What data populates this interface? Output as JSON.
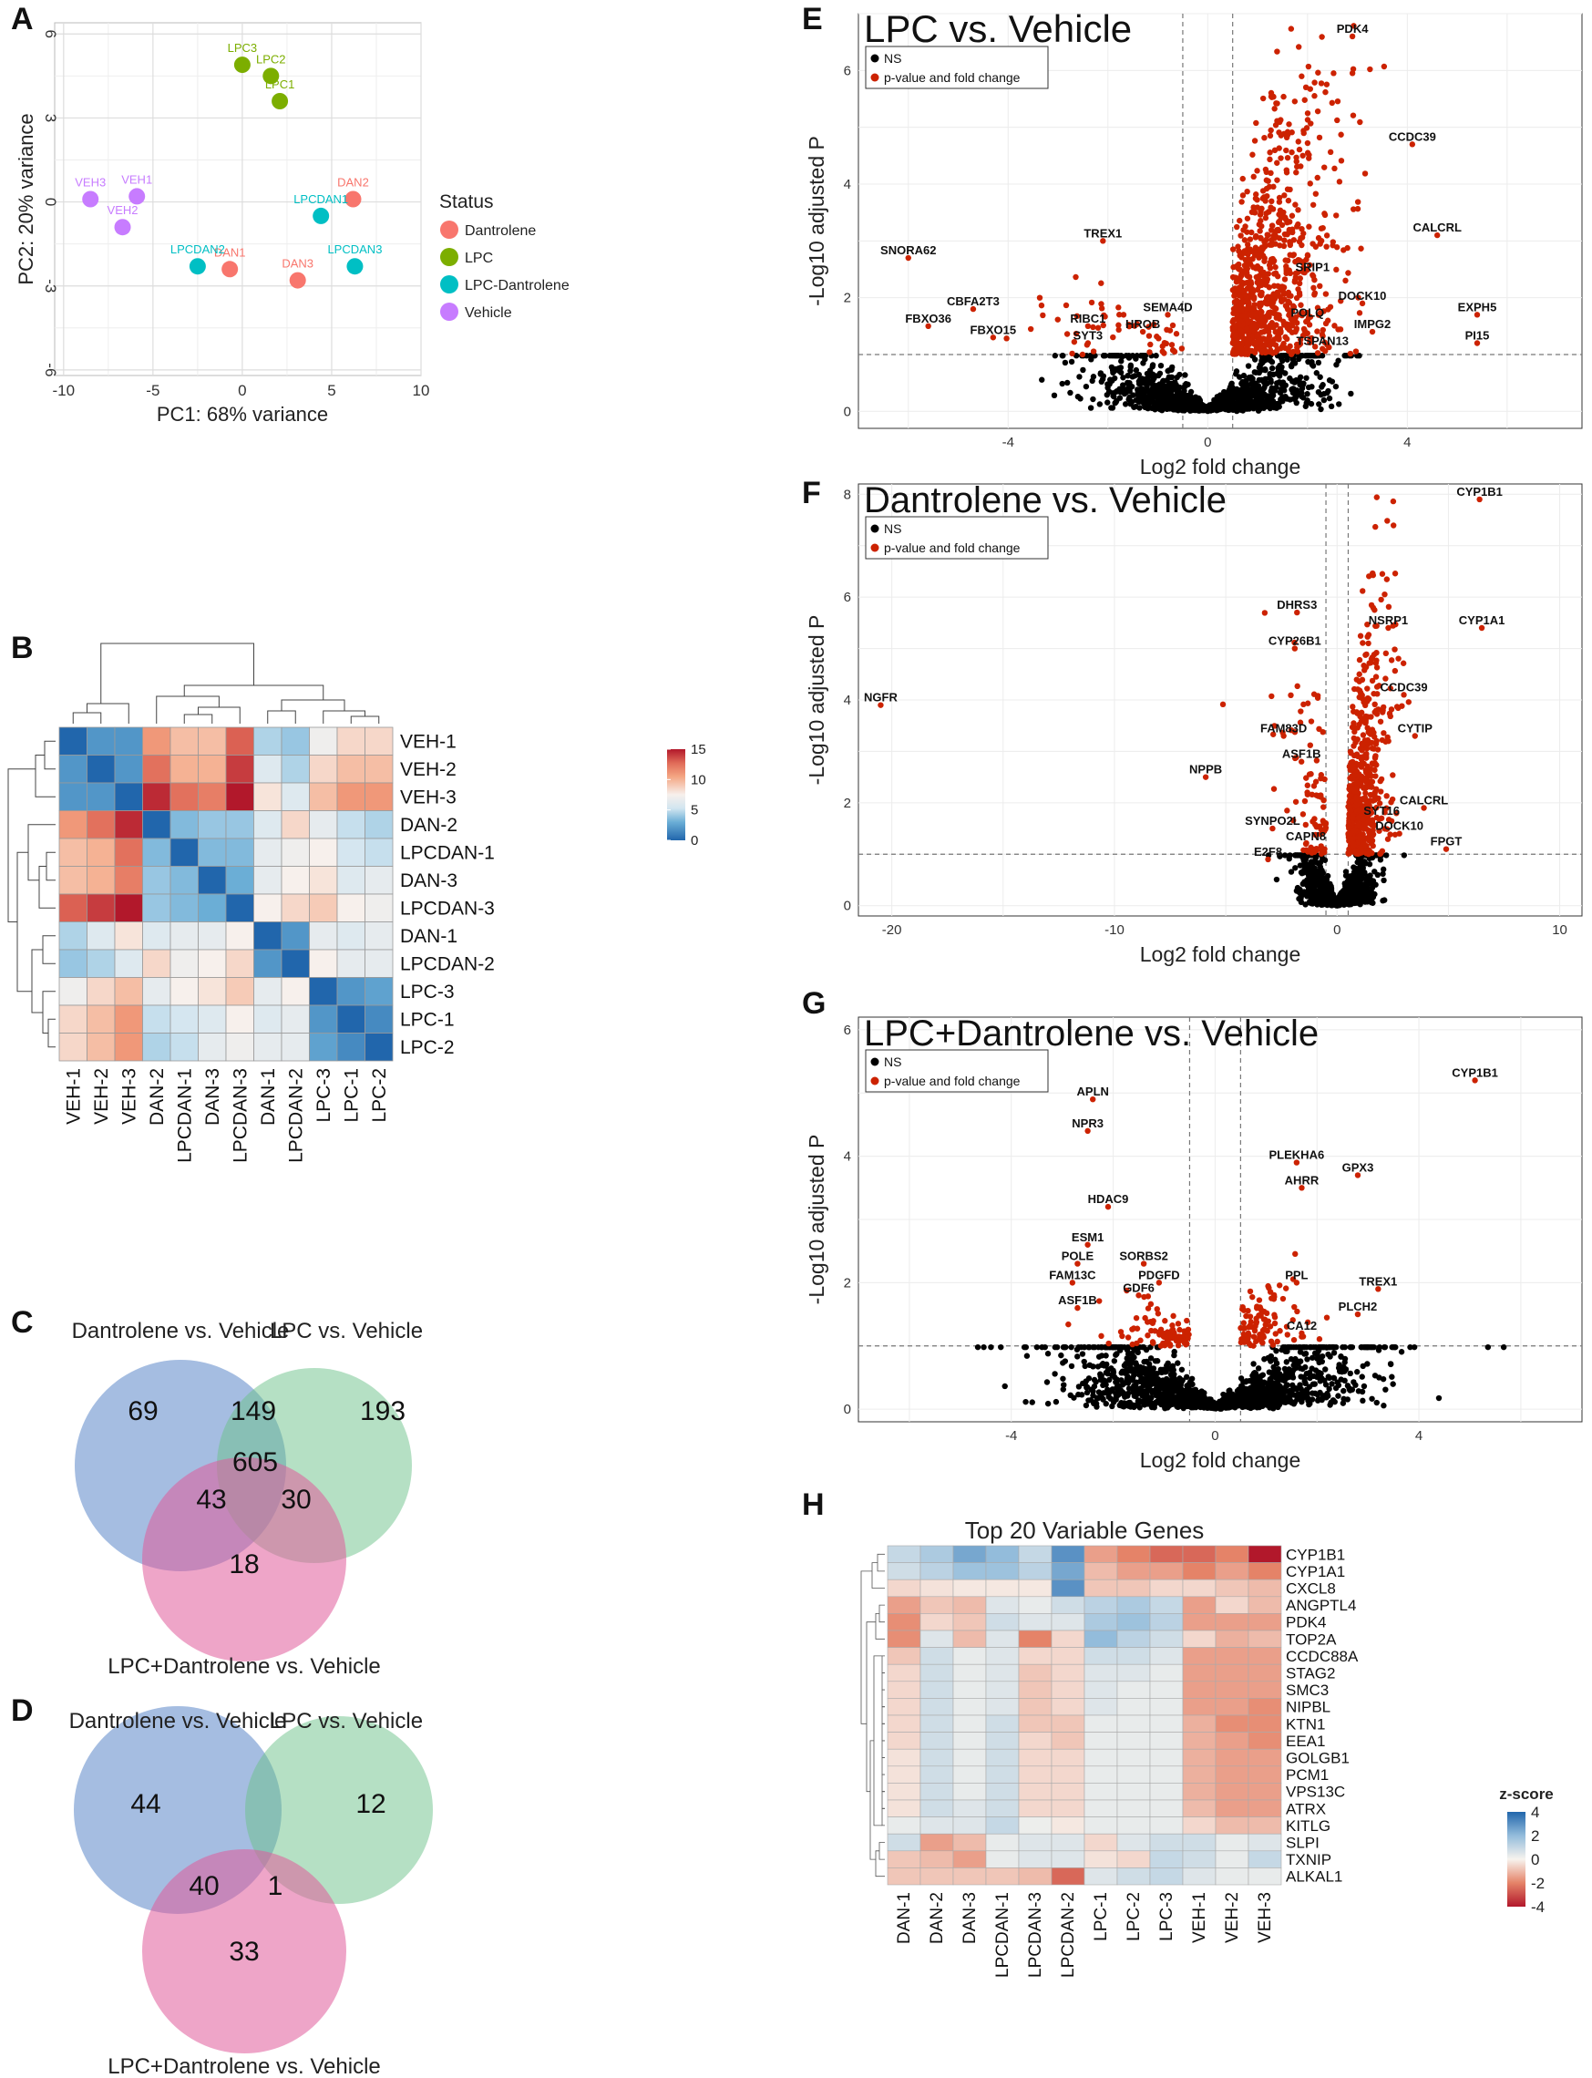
{
  "panel_labels": [
    "A",
    "B",
    "C",
    "D",
    "E",
    "F",
    "G",
    "H"
  ],
  "colors": {
    "dantrolene": "#F8766D",
    "lpc": "#7CAE00",
    "lpc_dantrolene": "#00BFC4",
    "vehicle": "#C77CFF",
    "sig_red": "#CC2200",
    "ns_black": "#000000"
  },
  "chart_data": [
    {
      "id": "A",
      "type": "scatter",
      "title": "",
      "xlabel": "PC1: 68% variance",
      "ylabel": "PC2: 20% variance",
      "xlim": [
        -10.5,
        10
      ],
      "ylim": [
        -6.2,
        6.4
      ],
      "xticks": [
        -10,
        -5,
        0,
        5,
        10
      ],
      "yticks": [
        -6,
        -3,
        0,
        3,
        6
      ],
      "legend_title": "Status",
      "legend": [
        {
          "label": "Dantrolene",
          "color": "#F8766D"
        },
        {
          "label": "LPC",
          "color": "#7CAE00"
        },
        {
          "label": "LPC-Dantrolene",
          "color": "#00BFC4"
        },
        {
          "label": "Vehicle",
          "color": "#C77CFF"
        }
      ],
      "points": [
        {
          "label": "LPC3",
          "x": 0.0,
          "y": 4.9,
          "group": "LPC"
        },
        {
          "label": "LPC2",
          "x": 1.6,
          "y": 4.5,
          "group": "LPC"
        },
        {
          "label": "LPC1",
          "x": 2.1,
          "y": 3.6,
          "group": "LPC"
        },
        {
          "label": "VEH3",
          "x": -8.5,
          "y": 0.1,
          "group": "Vehicle"
        },
        {
          "label": "VEH1",
          "x": -5.9,
          "y": 0.2,
          "group": "Vehicle"
        },
        {
          "label": "VEH2",
          "x": -6.7,
          "y": -0.9,
          "group": "Vehicle"
        },
        {
          "label": "DAN2",
          "x": 6.2,
          "y": 0.1,
          "group": "Dantrolene"
        },
        {
          "label": "DAN1",
          "x": -0.7,
          "y": -2.4,
          "group": "Dantrolene"
        },
        {
          "label": "DAN3",
          "x": 3.1,
          "y": -2.8,
          "group": "Dantrolene"
        },
        {
          "label": "LPCDAN1",
          "x": 4.4,
          "y": -0.5,
          "group": "LPC-Dantrolene"
        },
        {
          "label": "LPCDAN2",
          "x": -2.5,
          "y": -2.3,
          "group": "LPC-Dantrolene"
        },
        {
          "label": "LPCDAN3",
          "x": 6.3,
          "y": -2.3,
          "group": "LPC-Dantrolene"
        }
      ]
    },
    {
      "id": "B",
      "type": "heatmap",
      "title": "",
      "row_labels": [
        "VEH-1",
        "VEH-2",
        "VEH-3",
        "DAN-2",
        "LPCDAN-1",
        "DAN-3",
        "LPCDAN-3",
        "DAN-1",
        "LPCDAN-2",
        "LPC-3",
        "LPC-1",
        "LPC-2"
      ],
      "col_labels": [
        "VEH-1",
        "VEH-2",
        "VEH-3",
        "DAN-2",
        "LPCDAN-1",
        "DAN-3",
        "LPCDAN-3",
        "DAN-1",
        "LPCDAN-2",
        "LPC-3",
        "LPC-1",
        "LPC-2"
      ],
      "color_scale": {
        "min": 0,
        "max": 15,
        "ticks": [
          15,
          10,
          5,
          0
        ]
      },
      "values": [
        [
          0,
          2,
          2,
          11,
          9.5,
          9.5,
          13,
          4.5,
          4,
          7,
          8.5,
          8.5
        ],
        [
          2,
          0,
          2,
          12.5,
          10,
          10,
          14,
          6,
          4.5,
          8.5,
          9.5,
          9.5
        ],
        [
          2,
          2,
          0,
          14.5,
          12.5,
          12,
          15.5,
          8,
          6,
          9.5,
          11,
          11
        ],
        [
          11,
          12.5,
          14.5,
          0,
          3.5,
          4,
          4,
          6,
          8.5,
          6.5,
          5,
          4.5
        ],
        [
          9.5,
          10,
          12.5,
          3.5,
          0,
          3.5,
          3.5,
          6.5,
          7,
          7.5,
          5.5,
          5
        ],
        [
          9.5,
          10,
          12,
          4,
          3.5,
          0,
          3,
          6.5,
          7.5,
          8,
          6,
          6.5
        ],
        [
          13,
          14,
          15.5,
          4,
          3.5,
          3,
          0,
          7.5,
          8.5,
          9,
          7.5,
          7
        ],
        [
          4.5,
          6,
          8,
          6,
          6.5,
          6.5,
          7.5,
          0,
          2,
          6.5,
          6,
          6.5
        ],
        [
          4,
          4.5,
          6,
          8.5,
          7,
          7.5,
          8.5,
          2,
          0,
          7.5,
          6.5,
          6.5
        ],
        [
          7,
          8.5,
          9.5,
          6.5,
          7.5,
          8,
          9,
          6.5,
          7.5,
          0,
          2,
          2.5
        ],
        [
          8.5,
          9.5,
          11,
          5,
          5.5,
          6,
          7.5,
          6,
          6.5,
          2,
          0,
          1.5
        ],
        [
          8.5,
          9.5,
          11,
          4.5,
          5,
          6.5,
          7,
          6.5,
          6.5,
          2.5,
          1.5,
          0
        ]
      ]
    },
    {
      "id": "C",
      "type": "venn",
      "sets": [
        "Dantrolene vs. Vehicle",
        "LPC vs. Vehicle",
        "LPC+Dantrolene vs. Vehicle"
      ],
      "regions": {
        "A_only": "69",
        "B_only": "193",
        "C_only": "18",
        "AB": "149",
        "AC": "43",
        "BC": "30",
        "ABC": "605"
      }
    },
    {
      "id": "D",
      "type": "venn",
      "sets": [
        "Dantrolene vs. Vehicle",
        "LPC vs. Vehicle",
        "LPC+Dantrolene vs. Vehicle"
      ],
      "regions": {
        "A_only": "44",
        "B_only": "12",
        "AC": "40",
        "BC": "1",
        "C_only": "33"
      }
    },
    {
      "id": "E",
      "type": "scatter",
      "title": "LPC vs. Vehicle",
      "xlabel": "Log2 fold change",
      "ylabel": "-Log10 adjusted P",
      "xlim": [
        -7,
        7.5
      ],
      "ylim": [
        -0.3,
        7.0
      ],
      "xticks": [
        -4,
        0,
        4
      ],
      "yticks": [
        0,
        2,
        4,
        6
      ],
      "fc_cut": 0.5,
      "p_cut": 1,
      "legend": [
        "NS",
        "p-value and fold change"
      ],
      "labels": [
        {
          "text": "PDK4",
          "x": 2.9,
          "y": 6.6
        },
        {
          "text": "CCDC39",
          "x": 4.1,
          "y": 4.7
        },
        {
          "text": "CALCRL",
          "x": 4.6,
          "y": 3.1
        },
        {
          "text": "SNORA62",
          "x": -6.0,
          "y": 2.7
        },
        {
          "text": "TREX1",
          "x": -2.1,
          "y": 3.0
        },
        {
          "text": "SRIP1",
          "x": 2.1,
          "y": 2.4
        },
        {
          "text": "DOCK10",
          "x": 3.1,
          "y": 1.9
        },
        {
          "text": "EXPH5",
          "x": 5.4,
          "y": 1.7
        },
        {
          "text": "CBFA2T3",
          "x": -4.7,
          "y": 1.8
        },
        {
          "text": "SEMA4D",
          "x": -0.8,
          "y": 1.7
        },
        {
          "text": "RIBC1",
          "x": -2.4,
          "y": 1.5
        },
        {
          "text": "HROB",
          "x": -1.3,
          "y": 1.4
        },
        {
          "text": "POLQ",
          "x": 2.0,
          "y": 1.6
        },
        {
          "text": "IMPG2",
          "x": 3.3,
          "y": 1.4
        },
        {
          "text": "FBXO36",
          "x": -5.6,
          "y": 1.5
        },
        {
          "text": "FBXO15",
          "x": -4.3,
          "y": 1.3
        },
        {
          "text": "SYT3",
          "x": -2.4,
          "y": 1.2
        },
        {
          "text": "TSPAN13",
          "x": 2.3,
          "y": 1.1
        },
        {
          "text": "PI15",
          "x": 5.4,
          "y": 1.2
        }
      ]
    },
    {
      "id": "F",
      "type": "scatter",
      "title": "Dantrolene vs. Vehicle",
      "xlabel": "Log2 fold change",
      "ylabel": "-Log10 adjusted P",
      "xlim": [
        -21.5,
        11
      ],
      "ylim": [
        -0.2,
        8.2
      ],
      "xticks": [
        -20,
        -10,
        0,
        10
      ],
      "yticks": [
        0,
        2,
        4,
        6,
        8
      ],
      "fc_cut": 0.5,
      "p_cut": 1,
      "legend": [
        "NS",
        "p-value and fold change"
      ],
      "labels": [
        {
          "text": "CYP1B1",
          "x": 6.4,
          "y": 7.9
        },
        {
          "text": "CYP1A1",
          "x": 6.5,
          "y": 5.4
        },
        {
          "text": "DHRS3",
          "x": -1.8,
          "y": 5.7
        },
        {
          "text": "NSRP1",
          "x": 2.3,
          "y": 5.4
        },
        {
          "text": "CYP26B1",
          "x": -1.9,
          "y": 5.0
        },
        {
          "text": "NGFR",
          "x": -20.5,
          "y": 3.9
        },
        {
          "text": "CCDC39",
          "x": 3.0,
          "y": 4.1
        },
        {
          "text": "FAM83D",
          "x": -2.4,
          "y": 3.3
        },
        {
          "text": "CYTIP",
          "x": 3.5,
          "y": 3.3
        },
        {
          "text": "ASF1B",
          "x": -1.6,
          "y": 2.8
        },
        {
          "text": "NPPB",
          "x": -5.9,
          "y": 2.5
        },
        {
          "text": "CALCRL",
          "x": 3.9,
          "y": 1.9
        },
        {
          "text": "SYT16",
          "x": 2.0,
          "y": 1.7
        },
        {
          "text": "DOCK10",
          "x": 2.8,
          "y": 1.4
        },
        {
          "text": "SYNPO2L",
          "x": -2.9,
          "y": 1.5
        },
        {
          "text": "CAPN8",
          "x": -1.4,
          "y": 1.2
        },
        {
          "text": "FPGT",
          "x": 4.9,
          "y": 1.1
        },
        {
          "text": "E2F8",
          "x": -3.1,
          "y": 0.9
        }
      ]
    },
    {
      "id": "G",
      "type": "scatter",
      "title": "LPC+Dantrolene vs. Vehicle",
      "xlabel": "Log2 fold change",
      "ylabel": "-Log10 adjusted P",
      "xlim": [
        -7,
        7.2
      ],
      "ylim": [
        -0.2,
        6.2
      ],
      "xticks": [
        -4,
        0,
        4
      ],
      "yticks": [
        0,
        2,
        4,
        6
      ],
      "fc_cut": 0.5,
      "p_cut": 1,
      "legend": [
        "NS",
        "p-value and fold change"
      ],
      "labels": [
        {
          "text": "CYP1B1",
          "x": 5.1,
          "y": 5.2
        },
        {
          "text": "APLN",
          "x": -2.4,
          "y": 4.9
        },
        {
          "text": "NPR3",
          "x": -2.5,
          "y": 4.4
        },
        {
          "text": "PLEKHA6",
          "x": 1.6,
          "y": 3.9
        },
        {
          "text": "GPX3",
          "x": 2.8,
          "y": 3.7
        },
        {
          "text": "AHRR",
          "x": 1.7,
          "y": 3.5
        },
        {
          "text": "HDAC9",
          "x": -2.1,
          "y": 3.2
        },
        {
          "text": "ESM1",
          "x": -2.5,
          "y": 2.6
        },
        {
          "text": "POLE",
          "x": -2.7,
          "y": 2.3
        },
        {
          "text": "SORBS2",
          "x": -1.4,
          "y": 2.3
        },
        {
          "text": "PDGFD",
          "x": -1.1,
          "y": 2.0
        },
        {
          "text": "FAM13C",
          "x": -2.8,
          "y": 2.0
        },
        {
          "text": "PPL",
          "x": 1.6,
          "y": 2.0
        },
        {
          "text": "TREX1",
          "x": 3.2,
          "y": 1.9
        },
        {
          "text": "GDF6",
          "x": -1.5,
          "y": 1.8
        },
        {
          "text": "ASF1B",
          "x": -2.7,
          "y": 1.6
        },
        {
          "text": "PLCH2",
          "x": 2.8,
          "y": 1.5
        },
        {
          "text": "CA12",
          "x": 1.7,
          "y": 1.2
        }
      ]
    },
    {
      "id": "H",
      "type": "heatmap",
      "title": "Top 20 Variable Genes",
      "legend_title": "z-score",
      "color_scale": {
        "min": -4,
        "max": 4,
        "ticks": [
          "4",
          "2",
          "0",
          "-2",
          "-4"
        ]
      },
      "row_labels": [
        "CYP1B1",
        "CYP1A1",
        "CXCL8",
        "ANGPTL4",
        "PDK4",
        "TOP2A",
        "CCDC88A",
        "STAG2",
        "SMC3",
        "NIPBL",
        "KTN1",
        "EEA1",
        "GOLGB1",
        "PCM1",
        "VPS13C",
        "ATRX",
        "KITLG",
        "SLPI",
        "TXNIP",
        "ALKAL1"
      ],
      "col_labels": [
        "DAN-1",
        "DAN-2",
        "DAN-3",
        "LPCDAN-1",
        "LPCDAN-3",
        "LPCDAN-2",
        "LPC-1",
        "LPC-2",
        "LPC-3",
        "VEH-1",
        "VEH-2",
        "VEH-3"
      ],
      "values": [
        [
          1,
          1.5,
          2.5,
          2,
          1,
          3,
          -1.5,
          -2,
          -2.5,
          -2.5,
          -2,
          -4
        ],
        [
          0.8,
          1.2,
          1.8,
          1.8,
          1.2,
          2.5,
          -1,
          -1.5,
          -1.5,
          -2,
          -1.5,
          -2
        ],
        [
          -0.5,
          -0.3,
          -0.2,
          -0.2,
          -0.2,
          3,
          -0.8,
          -0.8,
          -0.5,
          -0.5,
          -0.8,
          -1
        ],
        [
          -1.5,
          -0.8,
          -1,
          0.5,
          0.3,
          0.8,
          1.2,
          1.5,
          1,
          -1.5,
          -0.5,
          -1
        ],
        [
          -1.8,
          -0.5,
          -0.8,
          0.8,
          0.5,
          0.5,
          1.5,
          1.8,
          1.2,
          -1.5,
          -1.5,
          -1.5
        ],
        [
          -1.8,
          0.5,
          -1,
          0.5,
          -2,
          -0.5,
          2,
          1.2,
          0.8,
          -0.5,
          -1.2,
          -1
        ],
        [
          -0.8,
          0.8,
          0.3,
          0.5,
          -0.5,
          -0.5,
          0.8,
          0.8,
          0.5,
          -1.5,
          -1.5,
          -1.5
        ],
        [
          -0.5,
          0.8,
          0.3,
          0.5,
          -0.8,
          -0.5,
          0.5,
          0.5,
          0.3,
          -1.5,
          -1.5,
          -1.5
        ],
        [
          -0.5,
          0.8,
          0.3,
          0.5,
          -0.8,
          -0.5,
          0.5,
          0.3,
          0.3,
          -1.5,
          -1.5,
          -1.5
        ],
        [
          -0.5,
          0.8,
          0.3,
          0.5,
          -0.8,
          -0.5,
          0.5,
          0.3,
          0.3,
          -1.5,
          -1.5,
          -1.8
        ],
        [
          -0.5,
          0.8,
          0.3,
          0.8,
          -0.8,
          -0.8,
          0.3,
          0.3,
          0.3,
          -1.2,
          -1.8,
          -1.8
        ],
        [
          -0.5,
          0.8,
          0.3,
          0.8,
          -0.5,
          -0.8,
          0.3,
          0.3,
          0.3,
          -1.2,
          -1.5,
          -1.8
        ],
        [
          -0.3,
          0.8,
          0.3,
          0.8,
          -0.5,
          -0.5,
          0.3,
          0.3,
          0.3,
          -1.2,
          -1.5,
          -1.5
        ],
        [
          -0.3,
          0.8,
          0.3,
          0.8,
          -0.5,
          -0.5,
          0.3,
          0.3,
          0.3,
          -1.2,
          -1.5,
          -1.5
        ],
        [
          -0.3,
          0.8,
          0.3,
          0.8,
          -0.5,
          -0.5,
          0.3,
          0.3,
          0.3,
          -1.2,
          -1.5,
          -1.5
        ],
        [
          -0.3,
          0.8,
          0.5,
          0.8,
          -0.5,
          -0.5,
          0.3,
          0.3,
          0.3,
          -1,
          -1.5,
          -1.5
        ],
        [
          0.3,
          0.5,
          0.5,
          1,
          0.2,
          -0.2,
          0.3,
          0.3,
          0.3,
          -0.5,
          -1,
          -1
        ],
        [
          0.8,
          -1.5,
          -1,
          0.3,
          0.5,
          0.5,
          -0.5,
          0.5,
          0.8,
          0.8,
          0.3,
          0.5
        ],
        [
          -0.8,
          -1,
          -1.5,
          0.3,
          0.5,
          0.5,
          -0.3,
          -0.5,
          1,
          0.8,
          0.3,
          1
        ],
        [
          -0.8,
          -0.8,
          -0.8,
          -0.8,
          -1,
          -2.5,
          0.5,
          0.8,
          1,
          0.5,
          0.3,
          0.3
        ]
      ]
    }
  ]
}
